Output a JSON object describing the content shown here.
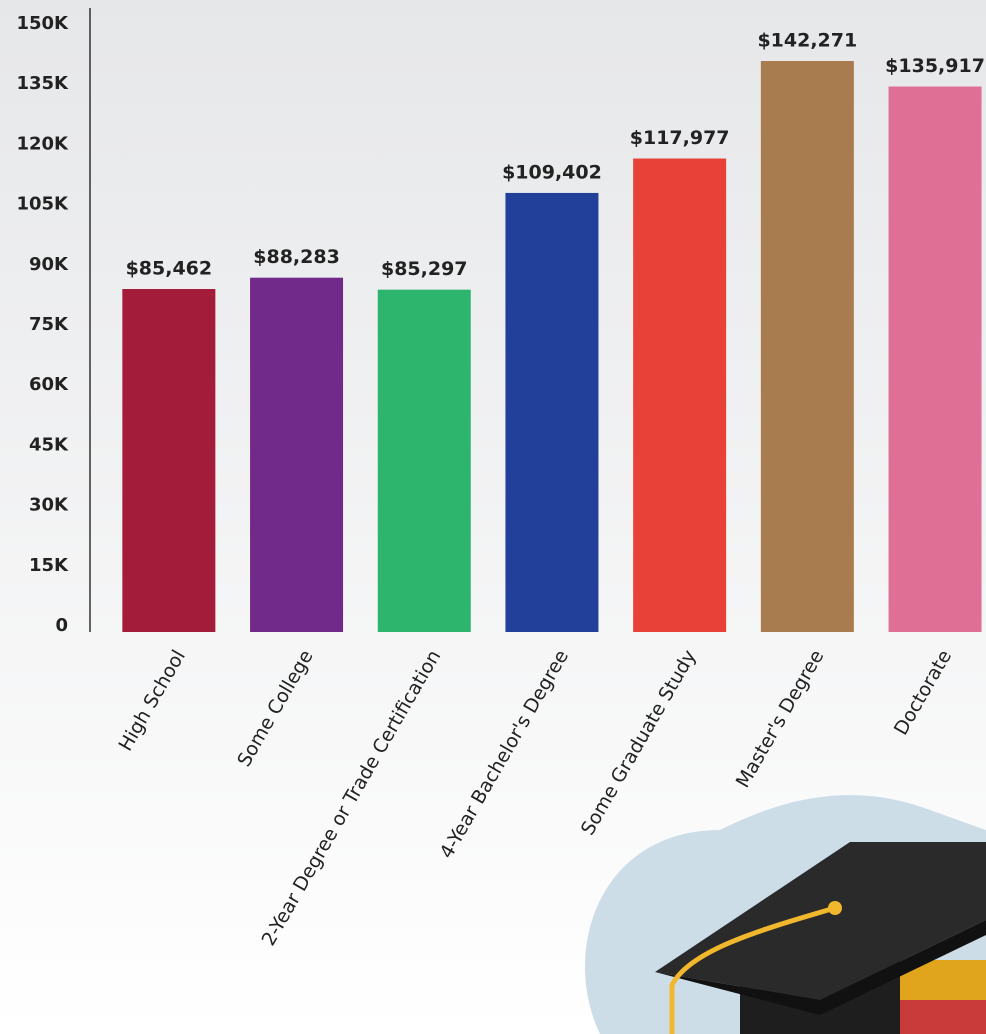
{
  "chart_data": {
    "type": "bar",
    "categories": [
      "High School",
      "Some College",
      "2-Year Degree or Trade Certification",
      "4-Year Bachelor's Degree",
      "Some Graduate Study",
      "Master's Degree",
      "Doctorate"
    ],
    "values": [
      85462,
      88283,
      85297,
      109402,
      117977,
      142271,
      135917
    ],
    "value_labels": [
      "$85,462",
      "$88,283",
      "$85,297",
      "$109,402",
      "$117,977",
      "$142,271",
      "$135,917"
    ],
    "colors": [
      "#a31c3a",
      "#722a8a",
      "#2db56e",
      "#22409a",
      "#e84238",
      "#a97c4f",
      "#e06f96"
    ],
    "ylim": [
      0,
      150000
    ],
    "yticks": [
      {
        "value": 0,
        "label": "0"
      },
      {
        "value": 15000,
        "label": "15K"
      },
      {
        "value": 30000,
        "label": "30K"
      },
      {
        "value": 45000,
        "label": "45K"
      },
      {
        "value": 60000,
        "label": "60K"
      },
      {
        "value": 75000,
        "label": "75K"
      },
      {
        "value": 90000,
        "label": "90K"
      },
      {
        "value": 105000,
        "label": "105K"
      },
      {
        "value": 120000,
        "label": "120K"
      },
      {
        "value": 135000,
        "label": "135K"
      },
      {
        "value": 150000,
        "label": "150K"
      }
    ],
    "grid": false
  }
}
